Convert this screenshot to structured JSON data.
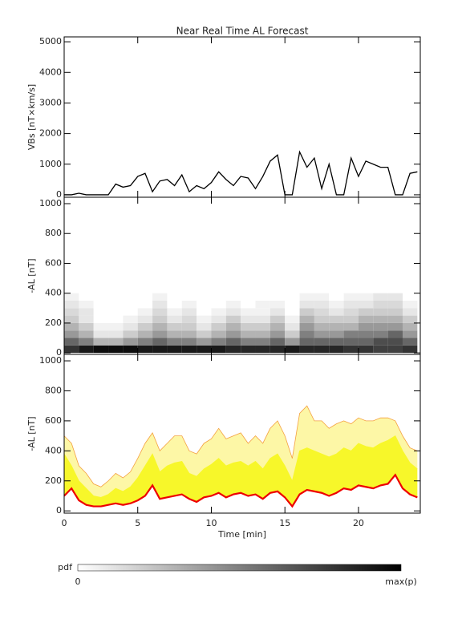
{
  "chart_data": [
    {
      "type": "line",
      "title": "Near Real Time AL Forecast",
      "ylabel": "VBs [nT×km/s]",
      "color": "#000000",
      "x": [
        0,
        0.5,
        1,
        1.5,
        2,
        2.5,
        3,
        3.5,
        4,
        4.5,
        5,
        5.5,
        6,
        6.5,
        7,
        7.5,
        8,
        8.5,
        9,
        9.5,
        10,
        10.5,
        11,
        11.5,
        12,
        12.5,
        13,
        13.5,
        14,
        14.5,
        15,
        15.5,
        16,
        16.5,
        17,
        17.5,
        18,
        18.5,
        19,
        19.5,
        20,
        20.5,
        21,
        21.5,
        22,
        22.5,
        23,
        23.5,
        24
      ],
      "values": [
        0,
        0,
        50,
        0,
        0,
        0,
        0,
        350,
        250,
        300,
        600,
        700,
        100,
        450,
        500,
        300,
        650,
        100,
        300,
        200,
        400,
        750,
        500,
        300,
        600,
        550,
        200,
        600,
        1100,
        1300,
        0,
        0,
        1400,
        900,
        1200,
        200,
        1000,
        0,
        0,
        1200,
        600,
        1100,
        1000,
        900,
        900,
        0,
        0,
        700,
        750
      ],
      "xlim": [
        0,
        24.2
      ],
      "xticks": [
        0,
        5,
        10,
        15,
        20
      ],
      "show_xtick_labels": false,
      "ylim": [
        -80,
        5160
      ],
      "yticks": [
        0,
        1000,
        2000,
        3000,
        4000,
        5000
      ]
    },
    {
      "type": "heatmap",
      "ylabel": "-AL [nT]",
      "x_bins": [
        0,
        1,
        2,
        3,
        4,
        5,
        6,
        7,
        8,
        9,
        10,
        11,
        12,
        13,
        14,
        15,
        16,
        17,
        18,
        19,
        20,
        21,
        22,
        23,
        24
      ],
      "y_bins": [
        0,
        50,
        100,
        150,
        200,
        250,
        300,
        350,
        400
      ],
      "values": [
        [
          0.8,
          0.6,
          0.4,
          0.3,
          0.2,
          0.15,
          0.1,
          0.05
        ],
        [
          0.9,
          0.5,
          0.3,
          0.2,
          0.1,
          0.1,
          0.05,
          0
        ],
        [
          0.95,
          0.3,
          0.1,
          0.05,
          0,
          0,
          0,
          0
        ],
        [
          0.95,
          0.3,
          0.1,
          0.05,
          0,
          0,
          0,
          0
        ],
        [
          0.95,
          0.4,
          0.2,
          0.1,
          0.05,
          0,
          0,
          0
        ],
        [
          0.9,
          0.5,
          0.3,
          0.2,
          0.1,
          0.05,
          0,
          0
        ],
        [
          0.9,
          0.6,
          0.4,
          0.3,
          0.2,
          0.15,
          0.1,
          0.05
        ],
        [
          0.9,
          0.5,
          0.3,
          0.2,
          0.1,
          0.05,
          0,
          0
        ],
        [
          0.9,
          0.5,
          0.3,
          0.2,
          0.15,
          0.1,
          0.05,
          0
        ],
        [
          0.9,
          0.4,
          0.2,
          0.1,
          0.05,
          0,
          0,
          0
        ],
        [
          0.9,
          0.5,
          0.3,
          0.2,
          0.1,
          0.05,
          0,
          0
        ],
        [
          0.85,
          0.6,
          0.4,
          0.3,
          0.2,
          0.1,
          0.05,
          0
        ],
        [
          0.85,
          0.5,
          0.3,
          0.2,
          0.1,
          0.05,
          0,
          0
        ],
        [
          0.85,
          0.5,
          0.3,
          0.2,
          0.1,
          0.05,
          0.05,
          0
        ],
        [
          0.85,
          0.6,
          0.4,
          0.3,
          0.2,
          0.1,
          0.05,
          0
        ],
        [
          0.9,
          0.4,
          0.2,
          0.1,
          0.05,
          0,
          0,
          0
        ],
        [
          0.85,
          0.6,
          0.5,
          0.4,
          0.3,
          0.2,
          0.1,
          0.05
        ],
        [
          0.85,
          0.6,
          0.4,
          0.3,
          0.2,
          0.15,
          0.1,
          0.05
        ],
        [
          0.85,
          0.6,
          0.4,
          0.3,
          0.2,
          0.1,
          0.05,
          0
        ],
        [
          0.8,
          0.6,
          0.5,
          0.3,
          0.2,
          0.15,
          0.1,
          0.05
        ],
        [
          0.8,
          0.6,
          0.5,
          0.4,
          0.3,
          0.2,
          0.1,
          0.05
        ],
        [
          0.75,
          0.7,
          0.5,
          0.4,
          0.3,
          0.2,
          0.15,
          0.1
        ],
        [
          0.75,
          0.7,
          0.6,
          0.4,
          0.3,
          0.2,
          0.15,
          0.1
        ],
        [
          0.8,
          0.6,
          0.4,
          0.3,
          0.2,
          0.1,
          0.05,
          0
        ]
      ],
      "xlim": [
        0,
        24.2
      ],
      "xticks": [
        0,
        5,
        10,
        15,
        20
      ],
      "show_xtick_labels": false,
      "ylim": [
        -10,
        1043
      ],
      "yticks": [
        0,
        200,
        400,
        600,
        800,
        1000
      ]
    },
    {
      "type": "band",
      "ylabel": "-AL [nT]",
      "xlabel": "Time [min]",
      "x": [
        0,
        0.5,
        1,
        1.5,
        2,
        2.5,
        3,
        3.5,
        4,
        4.5,
        5,
        5.5,
        6,
        6.5,
        7,
        7.5,
        8,
        8.5,
        9,
        9.5,
        10,
        10.5,
        11,
        11.5,
        12,
        12.5,
        13,
        13.5,
        14,
        14.5,
        15,
        15.5,
        16,
        16.5,
        17,
        17.5,
        18,
        18.5,
        19,
        19.5,
        20,
        20.5,
        21,
        21.5,
        22,
        22.5,
        23,
        23.5,
        24
      ],
      "series": [
        {
          "color": "#ee0000",
          "values": [
            100,
            150,
            70,
            40,
            30,
            30,
            40,
            50,
            40,
            50,
            70,
            100,
            170,
            80,
            90,
            100,
            110,
            80,
            60,
            90,
            100,
            120,
            90,
            110,
            120,
            100,
            110,
            80,
            120,
            130,
            90,
            30,
            110,
            140,
            130,
            120,
            100,
            120,
            150,
            140,
            170,
            160,
            150,
            170,
            180,
            240,
            150,
            110,
            90
          ]
        },
        {
          "color": "#f7f72a",
          "values": [
            380,
            300,
            200,
            150,
            100,
            90,
            110,
            150,
            130,
            160,
            220,
            300,
            380,
            260,
            300,
            320,
            330,
            250,
            230,
            280,
            310,
            350,
            300,
            320,
            330,
            300,
            330,
            280,
            350,
            380,
            300,
            200,
            400,
            420,
            400,
            380,
            360,
            380,
            420,
            400,
            450,
            430,
            420,
            450,
            470,
            500,
            400,
            320,
            280
          ]
        },
        {
          "color": "#fdf7a6",
          "edge_color": "#f4a040",
          "values": [
            500,
            450,
            300,
            250,
            180,
            160,
            200,
            250,
            220,
            260,
            350,
            450,
            520,
            400,
            450,
            500,
            500,
            400,
            380,
            450,
            480,
            550,
            480,
            500,
            520,
            450,
            500,
            450,
            550,
            600,
            500,
            350,
            650,
            700,
            600,
            600,
            550,
            580,
            600,
            580,
            620,
            600,
            600,
            620,
            620,
            600,
            500,
            420,
            400
          ]
        }
      ],
      "xlim": [
        0,
        24.2
      ],
      "xticks": [
        0,
        5,
        10,
        15,
        20
      ],
      "show_xtick_labels": true,
      "ylim": [
        -15,
        1043
      ],
      "yticks": [
        0,
        200,
        400,
        600,
        800,
        1000
      ]
    }
  ],
  "colorbar": {
    "label": "pdf",
    "low": "0",
    "high": "max(p)"
  }
}
